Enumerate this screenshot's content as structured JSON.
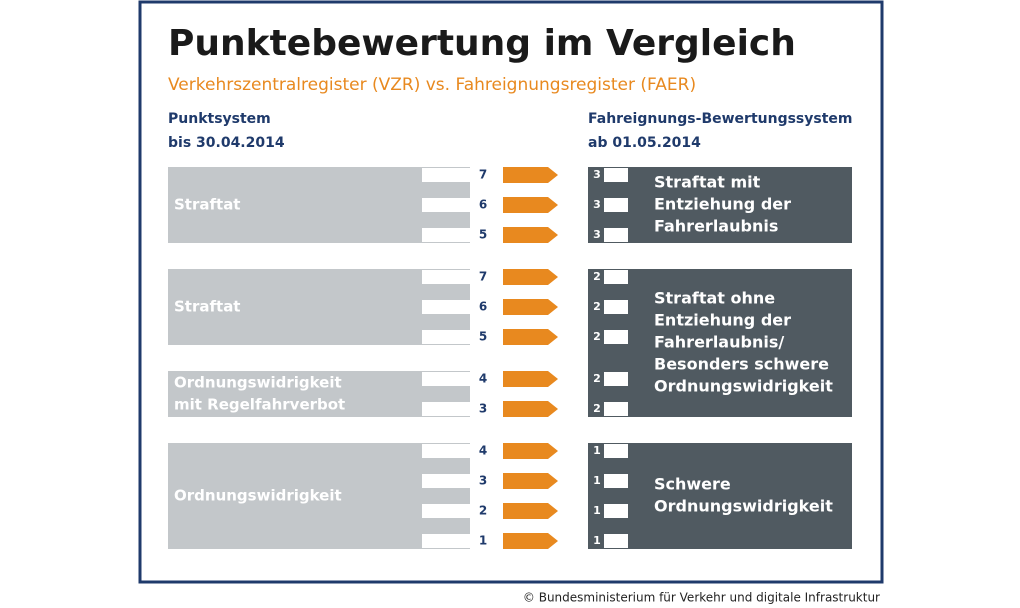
{
  "title": "Punktebewertung im Vergleich",
  "subtitle": "Verkehrszentralregister (VZR) vs. Fahreignungsregister (FAER)",
  "left_header": [
    "Punktsystem",
    "bis 30.04.2014"
  ],
  "right_header": [
    "Fahreignungs-Bewertungssystem",
    "ab 01.05.2014"
  ],
  "rows": [
    {
      "old": 7,
      "new": 3
    },
    {
      "old": 6,
      "new": 3
    },
    {
      "old": 5,
      "new": 3
    },
    {
      "old": 7,
      "new": 2
    },
    {
      "old": 6,
      "new": 2
    },
    {
      "old": 5,
      "new": 2
    },
    {
      "old": 4,
      "new": 2
    },
    {
      "old": 3,
      "new": 2
    },
    {
      "old": 4,
      "new": 1
    },
    {
      "old": 3,
      "new": 1
    },
    {
      "old": 2,
      "new": 1
    },
    {
      "old": 1,
      "new": 1
    }
  ],
  "left_groups": [
    {
      "label": [
        "Straftat"
      ],
      "first_row": 0,
      "last_row": 2
    },
    {
      "label": [
        "Straftat"
      ],
      "first_row": 3,
      "last_row": 5
    },
    {
      "label": [
        "Ordnungswidrigkeit",
        "mit Regelfahrverbot"
      ],
      "first_row": 6,
      "last_row": 7
    },
    {
      "label": [
        "Ordnungswidrigkeit"
      ],
      "first_row": 8,
      "last_row": 11
    }
  ],
  "right_groups": [
    {
      "label": [
        "Straftat mit",
        "Entziehung der",
        "Fahrerlaubnis"
      ],
      "first_row": 0,
      "last_row": 2
    },
    {
      "label": [
        "Straftat ohne",
        "Entziehung der",
        "Fahrerlaubnis/",
        "Besonders schwere",
        "Ordnungswidrigkeit"
      ],
      "first_row": 3,
      "last_row": 7
    },
    {
      "label": [
        "Schwere",
        "Ordnungswidrigkeit"
      ],
      "first_row": 8,
      "last_row": 11
    }
  ],
  "copyright": "© Bundesministerium für Verkehr und digitale Infrastruktur"
}
